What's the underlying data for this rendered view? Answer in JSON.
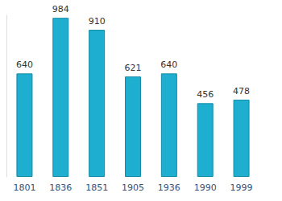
{
  "chart_data": {
    "type": "bar",
    "categories": [
      "1801",
      "1836",
      "1851",
      "1905",
      "1936",
      "1990",
      "1999"
    ],
    "values": [
      640,
      984,
      910,
      621,
      640,
      456,
      478
    ],
    "color": "#1eaed0",
    "ylim": [
      0,
      1000
    ],
    "grid": false,
    "data_labels": true,
    "tick_labels": "x"
  }
}
